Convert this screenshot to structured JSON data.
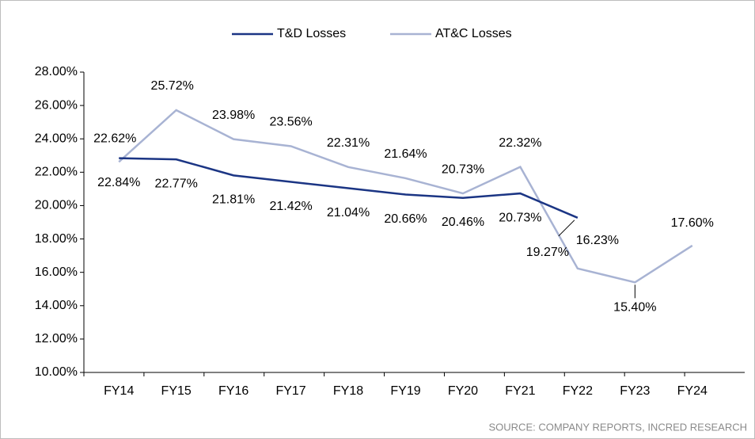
{
  "chart_data": {
    "type": "line",
    "categories": [
      "FY14",
      "FY15",
      "FY16",
      "FY17",
      "FY18",
      "FY19",
      "FY20",
      "FY21",
      "FY22",
      "FY23",
      "FY24"
    ],
    "series": [
      {
        "name": "T&D Losses",
        "color": "#1b3584",
        "values": [
          22.84,
          22.77,
          21.81,
          21.42,
          21.04,
          20.66,
          20.46,
          20.73,
          19.27,
          null,
          null
        ],
        "value_labels": [
          "22.84%",
          "22.77%",
          "21.81%",
          "21.42%",
          "21.04%",
          "20.66%",
          "20.46%",
          "20.73%",
          "19.27%",
          null,
          null
        ]
      },
      {
        "name": "AT&C Losses",
        "color": "#a8b3d3",
        "values": [
          22.62,
          25.72,
          23.98,
          23.56,
          22.31,
          21.64,
          20.73,
          22.32,
          16.23,
          15.4,
          17.6
        ],
        "value_labels": [
          "22.62%",
          "25.72%",
          "23.98%",
          "23.56%",
          "22.31%",
          "21.64%",
          "20.73%",
          "22.32%",
          "16.23%",
          "15.40%",
          "17.60%"
        ]
      }
    ],
    "ylim": [
      10,
      28
    ],
    "yticks": [
      {
        "value": 10,
        "label": "10.00%"
      },
      {
        "value": 12,
        "label": "12.00%"
      },
      {
        "value": 14,
        "label": "14.00%"
      },
      {
        "value": 16,
        "label": "16.00%"
      },
      {
        "value": 18,
        "label": "18.00%"
      },
      {
        "value": 20,
        "label": "20.00%"
      },
      {
        "value": 22,
        "label": "22.00%"
      },
      {
        "value": 24,
        "label": "24.00%"
      },
      {
        "value": 26,
        "label": "26.00%"
      },
      {
        "value": 28,
        "label": "28.00%"
      }
    ],
    "legend": "top",
    "source": "SOURCE: COMPANY REPORTS, INCRED RESEARCH"
  }
}
